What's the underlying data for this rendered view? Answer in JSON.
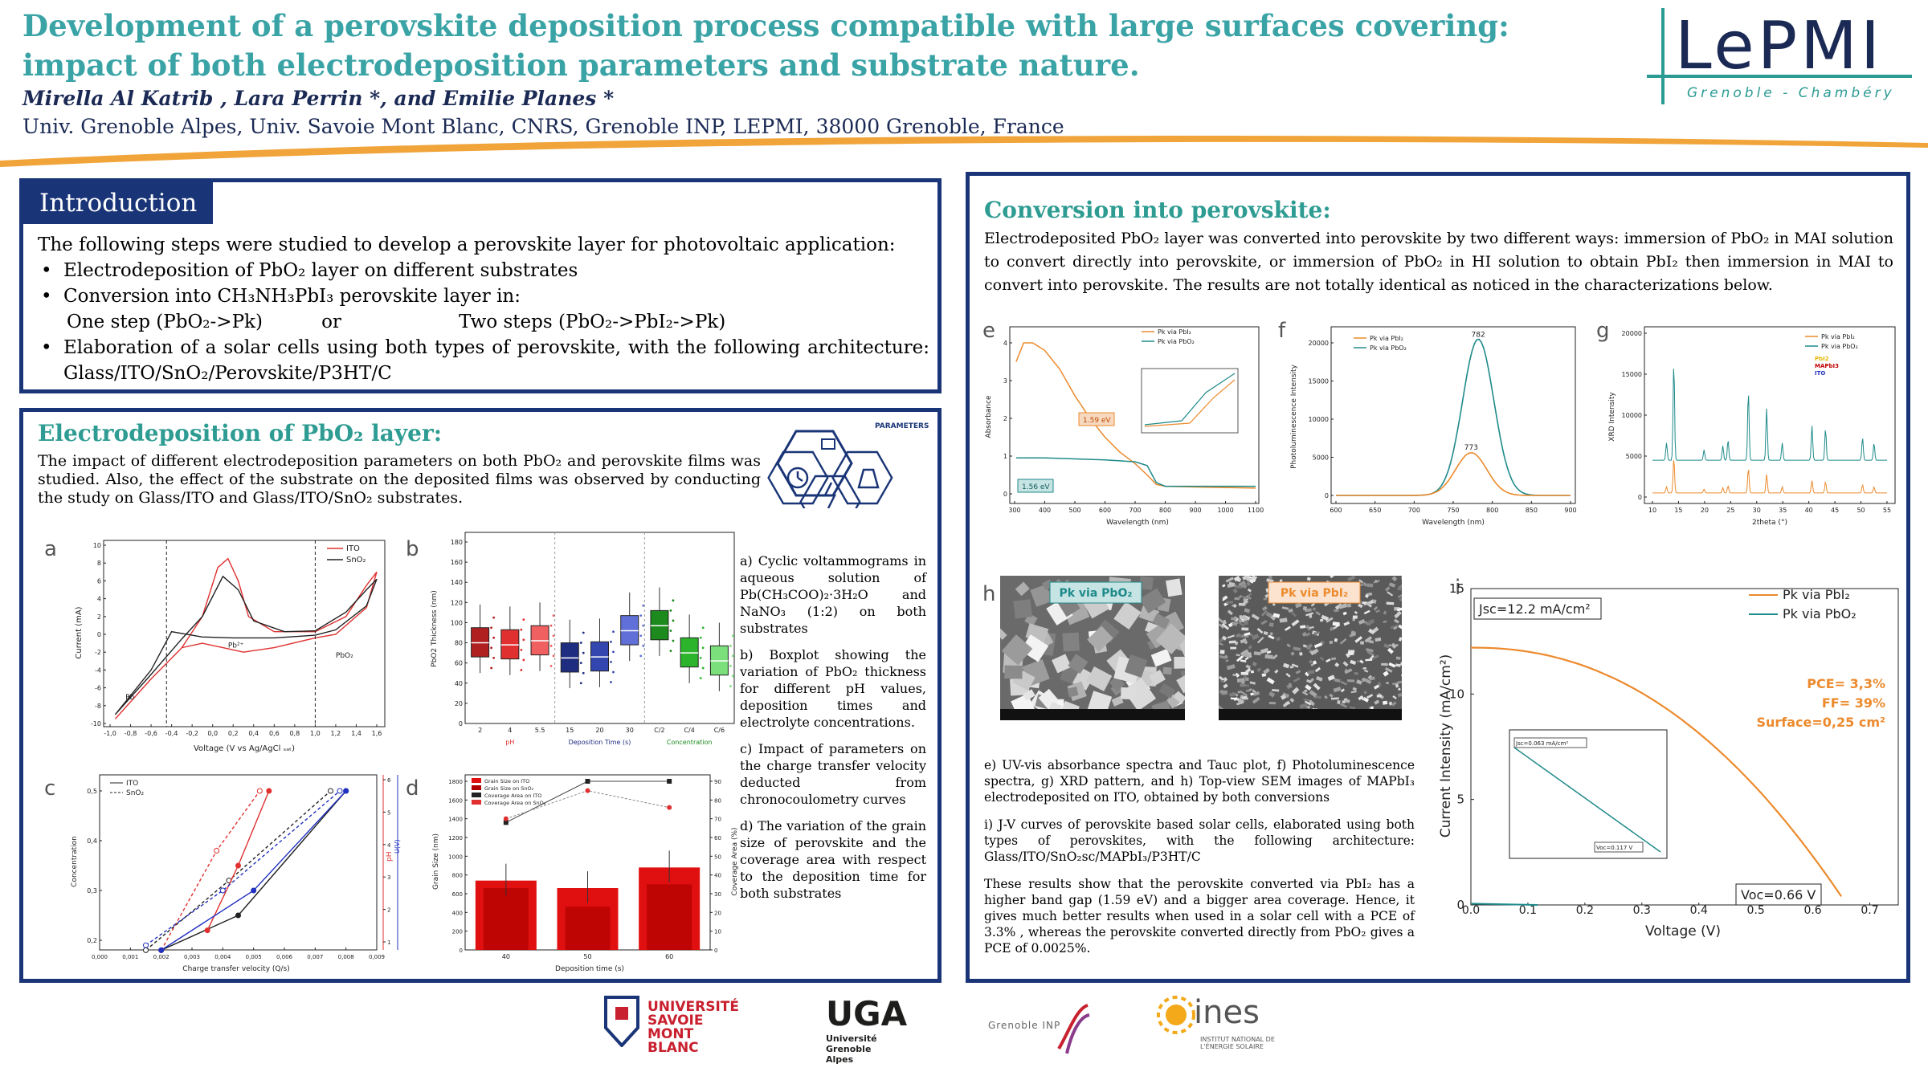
{
  "header": {
    "title": "Development of a perovskite deposition process compatible with large surfaces covering: impact of both electrodeposition parameters and substrate nature.",
    "authors": "Mirella Al Katrib , Lara Perrin *, and Emilie Planes *",
    "affiliation": "Univ. Grenoble Alpes, Univ. Savoie Mont Blanc, CNRS, Grenoble INP, LEPMI, 38000 Grenoble, France",
    "logo_main": "LePMI",
    "logo_sub": "Grenoble - Chambéry"
  },
  "intro": {
    "heading": "Introduction",
    "lead": "The following steps were studied to develop a perovskite layer for photovoltaic application:",
    "bullet1": "Electrodeposition of PbO₂ layer on different substrates",
    "bullet2": "Conversion into CH₃NH₃PbI₃ perovskite layer in:",
    "steps": "One step (PbO₂->Pk)          or                    Two steps (PbO₂->PbI₂->Pk)",
    "bullet3": "Elaboration of a solar cells using both types of perovskite, with the following architecture: Glass/ITO/SnO₂/Perovskite/P3HT/C"
  },
  "electro": {
    "heading": "Electrodeposition of PbO₂ layer:",
    "text": "The impact of different electrodeposition parameters on both PbO₂ and perovskite films was studied. Also, the effect of the substrate on the deposited films was observed by conducting the study on Glass/ITO and Glass/ITO/SnO₂ substrates.",
    "icon_label": "PARAMETERS",
    "captions": {
      "a": "a) Cyclic voltammograms in aqueous solution of Pb(CH₃COO)₂·3H₂O and NaNO₃ (1:2) on both substrates",
      "b": "b) Boxplot showing the variation of PbO₂ thickness for different pH values, deposition times and electrolyte concentrations.",
      "c": "c) Impact of parameters on the charge transfer velocity deducted from chronocoulometry curves",
      "d": "d) The variation of the grain size of perovskite and the coverage area with respect to the deposition time for both substrates"
    },
    "fig_a": {
      "letter": "a",
      "xlabel": "Voltage (V vs Ag/AgCl ₛₐₜ)",
      "ylabel": "Current (mA)",
      "legend": [
        "ITO",
        "SnO₂"
      ],
      "labels": [
        "Pb",
        "Pb²⁺",
        "PbO₂"
      ],
      "xticks": [
        "-1,0",
        "-0,8",
        "-0,6",
        "-0,4",
        "-0,2",
        "0,0",
        "0,2",
        "0,4",
        "0,6",
        "0,8",
        "1,0",
        "1,2",
        "1,4",
        "1,6"
      ],
      "yticks": [
        "10",
        "8",
        "6",
        "4",
        "2",
        "0",
        "-2",
        "-4",
        "-6",
        "-8",
        "-10"
      ]
    },
    "fig_b": {
      "letter": "b",
      "ylabel": "PbO2 Thickness (nm)",
      "categories": [
        "2",
        "4",
        "5.5",
        "15",
        "20",
        "30",
        "C/2",
        "C/4",
        "C/6"
      ],
      "groups": [
        "pH",
        "Deposition Time (s)",
        "Concentration"
      ],
      "yticks": [
        "0",
        "20",
        "40",
        "60",
        "80",
        "100",
        "120",
        "140",
        "160",
        "180"
      ]
    },
    "fig_c": {
      "letter": "c",
      "xlabel": "Charge transfer velocity (Q/s)",
      "ylabel_left": "Concentration",
      "ylabel_right1": "pH",
      "ylabel_right2": "U(V)",
      "legend": [
        "ITO",
        "SnO₂"
      ],
      "xticks": [
        "0,000",
        "0,001",
        "0,002",
        "0,003",
        "0,004",
        "0,005",
        "0,006",
        "0,007",
        "0,008",
        "0,009"
      ],
      "yticks_left": [
        "0,2",
        "0,3",
        "0,4",
        "0,5"
      ],
      "yticks_ph": [
        "1",
        "2",
        "3",
        "4",
        "5",
        "6"
      ],
      "yticks_u": [
        "1,1",
        "1,2",
        "1,3",
        "1,4",
        "1,5",
        "1,6",
        "1,7",
        "1,8",
        "1,9",
        "2,0",
        "2,1"
      ]
    },
    "fig_d": {
      "letter": "d",
      "xlabel": "Deposition time (s)",
      "ylabel_left": "Grain Size (nm)",
      "ylabel_right": "Coverage Area (%)",
      "legend": [
        "Grain Size on ITO",
        "Grain Size on SnO₂",
        "Coverage Area on ITO",
        "Coverage Area on SnO₂"
      ],
      "categories": [
        "40",
        "50",
        "60"
      ],
      "yticks_left": [
        "0",
        "200",
        "400",
        "600",
        "800",
        "1000",
        "1200",
        "1400",
        "1600",
        "1800"
      ],
      "yticks_right": [
        "0",
        "10",
        "20",
        "30",
        "40",
        "50",
        "60",
        "70",
        "80",
        "90"
      ]
    }
  },
  "conversion": {
    "heading": "Conversion into perovskite:",
    "text": "Electrodeposited PbO₂ layer was converted into perovskite by two different ways: immersion of PbO₂ in MAI solution to convert directly into perovskite, or immersion of PbO₂ in HI solution to obtain PbI₂ then immersion in MAI to convert into perovskite. The results are not totally identical as noticed in the characterizations below.",
    "captions": {
      "efgh": "e) UV-vis absorbance spectra and Tauc plot, f) Photoluminescence spectra, g) XRD pattern, and h) Top-view SEM images of MAPbI₃ electrodeposited on ITO, obtained by both conversions",
      "i": "i) J-V curves of perovskite based solar cells, elaborated using both types of perovskites, with the following architecture: Glass/ITO/SnO₂sc/MAPbI₃/P3HT/C",
      "result": "These results show that the perovskite converted via PbI₂ has a higher band gap (1.59 eV) and a bigger area coverage. Hence, it gives much better results when used in a solar cell with a PCE of 3.3% , whereas the perovskite converted directly from PbO₂ gives a PCE of 0.0025%."
    },
    "fig_e": {
      "letter": "e",
      "xlabel": "Wavelength (nm)",
      "ylabel": "Absorbance",
      "legend": [
        "Pk via PbI₂",
        "Pk via PbO₂"
      ],
      "annot1": "1.59 eV",
      "annot2": "1.56 eV",
      "xticks": [
        "300",
        "400",
        "500",
        "600",
        "700",
        "800",
        "900",
        "1000",
        "1100"
      ],
      "yticks": [
        "0",
        "1",
        "2",
        "3",
        "4"
      ]
    },
    "fig_f": {
      "letter": "f",
      "xlabel": "Wavelength (nm)",
      "ylabel": "Photoluminescence Intensity",
      "legend": [
        "Pk via PbI₂",
        "Pk via PbO₂"
      ],
      "peak1": "782",
      "peak2": "773",
      "xticks": [
        "600",
        "650",
        "700",
        "750",
        "800",
        "850",
        "900"
      ],
      "yticks": [
        "0",
        "5000",
        "10000",
        "15000",
        "20000"
      ]
    },
    "fig_g": {
      "letter": "g",
      "xlabel": "2theta (°)",
      "ylabel": "XRD Intensity",
      "legend": [
        "Pk via PbI₂",
        "Pk via PbO₂"
      ],
      "legend2": [
        "PbI2",
        "MAPbI3",
        "ITO"
      ],
      "xticks": [
        "10",
        "15",
        "20",
        "25",
        "30",
        "35",
        "40",
        "45",
        "50",
        "55"
      ],
      "yticks": [
        "0",
        "5000",
        "10000",
        "15000",
        "20000"
      ]
    },
    "fig_h": {
      "letter": "h",
      "label1": "Pk via PbO₂",
      "label2": "Pk via PbI₂"
    },
    "fig_i": {
      "letter": "i",
      "xlabel": "Voltage (V)",
      "ylabel": "Current Intensity (mA/cm²)",
      "legend": [
        "Pk via PbI₂",
        "Pk via PbO₂"
      ],
      "jsc": "Jsc=12.2 mA/cm²",
      "voc": "Voc=0.66 V",
      "pce": "PCE= 3,3%",
      "ff": "FF= 39%",
      "surface": "Surface=0,25 cm²",
      "inset_jsc": "Jsc=0.063 mA/cm²",
      "inset_voc": "Voc=0.117 V",
      "xticks": [
        "0.0",
        "0.1",
        "0.2",
        "0.3",
        "0.4",
        "0.5",
        "0.6",
        "0.7"
      ],
      "yticks": [
        "0",
        "5",
        "10",
        "15"
      ]
    }
  },
  "footer_logos": {
    "usmb": "UNIVERSITÉ SAVOIE MONT BLANC",
    "uga": "UGA",
    "uga_sub": "Université Grenoble Alpes",
    "inp": "Grenoble INP",
    "ines": "ines",
    "ines_sub": "INSTITUT NATIONAL DE L'ÉNERGIE SOLAIRE"
  },
  "colors": {
    "title": "#3aa3a6",
    "panel_border": "#1a3577",
    "orange": "#ec8a2d",
    "teal": "#1f8a8a",
    "red": "#e03030"
  }
}
